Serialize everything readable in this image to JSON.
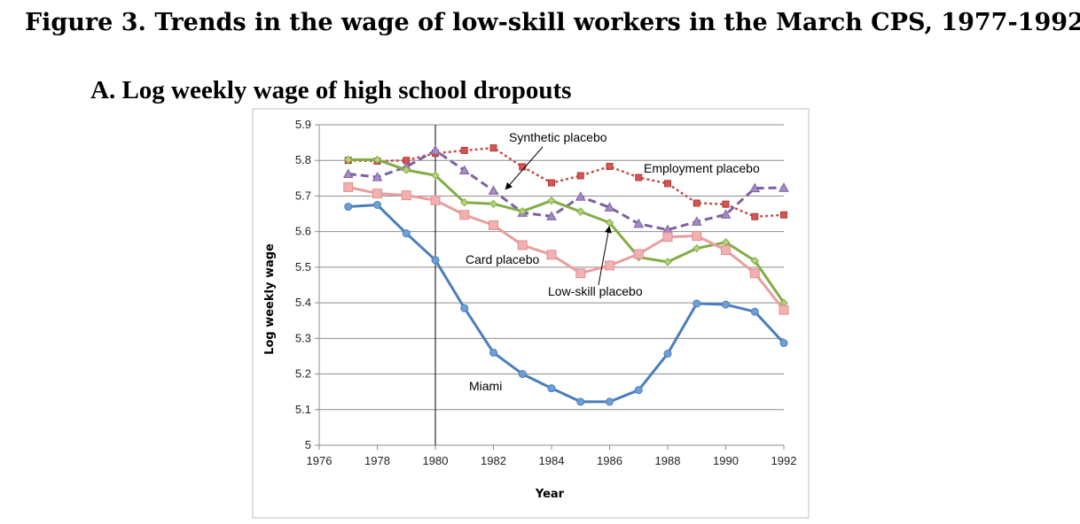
{
  "figure_title": "Figure 3. Trends in the wage of low-skill workers in the March CPS, 1977-1992",
  "panel_title": "A. Log weekly wage of high school dropouts",
  "chart_data": {
    "type": "line",
    "xlabel": "Year",
    "ylabel": "Log weekly wage",
    "xlim": [
      1976,
      1992
    ],
    "ylim": [
      5.0,
      5.9
    ],
    "x_ticks": [
      1976,
      1978,
      1980,
      1982,
      1984,
      1986,
      1988,
      1990,
      1992
    ],
    "y_ticks": [
      "5",
      "5.1",
      "5.2",
      "5.3",
      "5.4",
      "5.5",
      "5.6",
      "5.7",
      "5.8",
      "5.9"
    ],
    "grid": "horizontal",
    "vertical_marker": 1980,
    "x": [
      1977,
      1978,
      1979,
      1980,
      1981,
      1982,
      1983,
      1984,
      1985,
      1986,
      1987,
      1988,
      1989,
      1990,
      1991,
      1992
    ],
    "series": [
      {
        "name": "Miami",
        "color": "#4a7ebb",
        "marker": "circle",
        "style": "solid",
        "values": [
          5.67,
          5.675,
          5.595,
          5.52,
          5.385,
          5.26,
          5.2,
          5.16,
          5.122,
          5.122,
          5.155,
          5.257,
          5.398,
          5.395,
          5.375,
          5.287
        ]
      },
      {
        "name": "Card placebo",
        "color": "#e89e9e",
        "marker": "square",
        "style": "solid",
        "values": [
          5.725,
          5.707,
          5.702,
          5.688,
          5.647,
          5.618,
          5.562,
          5.535,
          5.483,
          5.505,
          5.537,
          5.585,
          5.588,
          5.548,
          5.483,
          5.38
        ]
      },
      {
        "name": "Low-skill placebo",
        "color": "#84ac45",
        "marker": "diamond",
        "style": "solid",
        "values": [
          5.802,
          5.802,
          5.773,
          5.758,
          5.682,
          5.678,
          5.657,
          5.687,
          5.656,
          5.625,
          5.528,
          5.515,
          5.553,
          5.57,
          5.518,
          5.4
        ]
      },
      {
        "name": "Synthetic placebo",
        "color": "#7d60a0",
        "marker": "triangle",
        "style": "dashed",
        "values": [
          5.762,
          5.753,
          5.782,
          5.828,
          5.772,
          5.715,
          5.653,
          5.643,
          5.698,
          5.668,
          5.622,
          5.605,
          5.628,
          5.648,
          5.722,
          5.723
        ]
      },
      {
        "name": "Employment placebo",
        "color": "#c0504d",
        "marker": "square-small",
        "style": "dotted",
        "values": [
          5.8,
          5.798,
          5.8,
          5.82,
          5.828,
          5.835,
          5.782,
          5.737,
          5.757,
          5.783,
          5.752,
          5.735,
          5.68,
          5.677,
          5.642,
          5.647
        ]
      }
    ],
    "annotations": [
      {
        "text": "Synthetic placebo",
        "arrow": true
      },
      {
        "text": "Employment placebo",
        "arrow": false
      },
      {
        "text": "Card placebo",
        "arrow": false
      },
      {
        "text": "Low-skill placebo",
        "arrow": true
      },
      {
        "text": "Miami",
        "arrow": false
      }
    ]
  }
}
